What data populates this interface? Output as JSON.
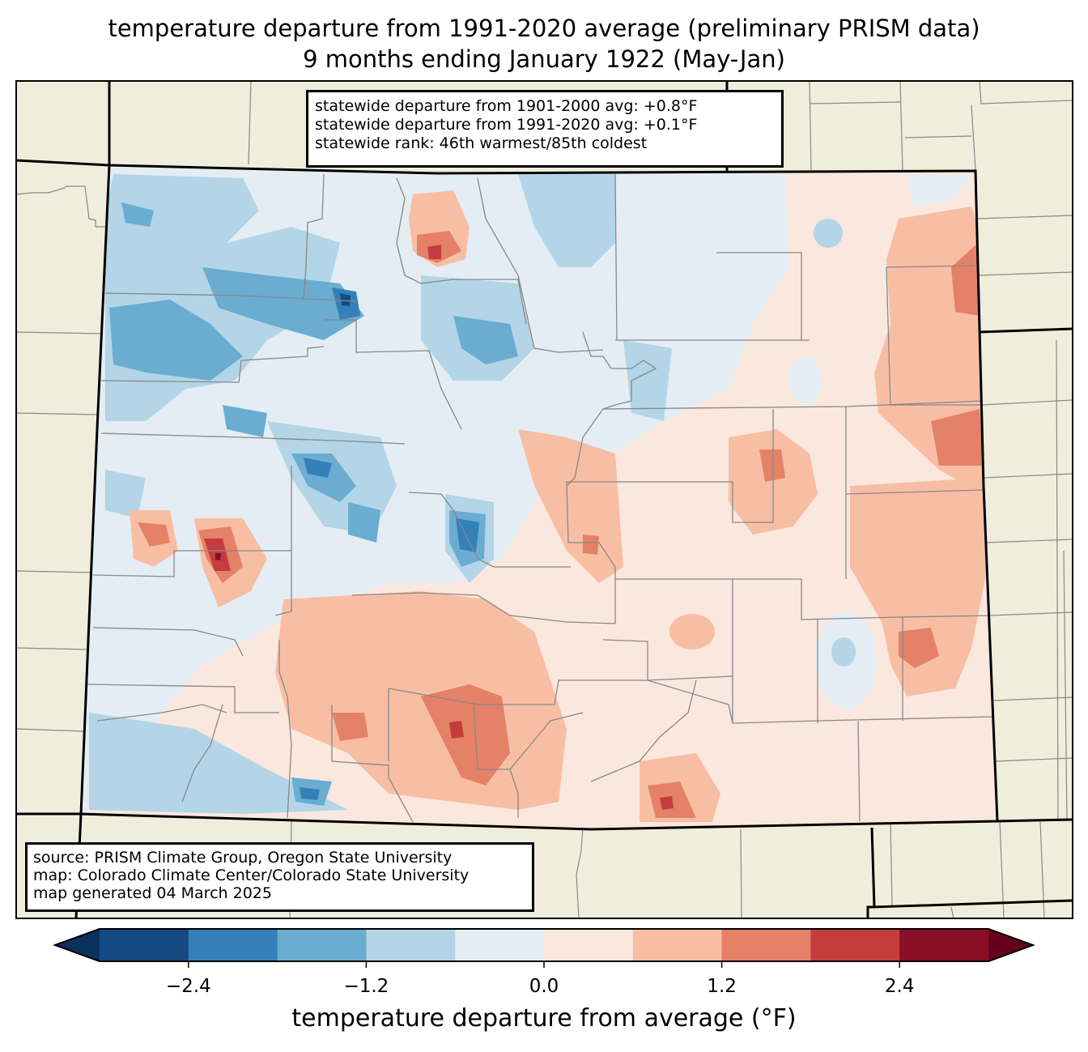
{
  "title": {
    "line1": "temperature departure from 1991-2020 average (preliminary PRISM data)",
    "line2": "9 months ending January 1922 (May-Jan)"
  },
  "stats": {
    "line1": "statewide departure from 1901-2000 avg: +0.8°F",
    "line2": "statewide departure from 1991-2020 avg: +0.1°F",
    "line3": "statewide rank: 46th warmest/85th coldest"
  },
  "credits": {
    "line1": "source: PRISM Climate Group, Oregon State University",
    "line2": "map: Colorado Climate Center/Colorado State University",
    "line3": "map generated 04 March 2025"
  },
  "colorbar": {
    "label": "temperature departure from average (°F)",
    "ticks": [
      "−2.4",
      "−1.2",
      "0.0",
      "1.2",
      "2.4"
    ],
    "tick_values": [
      -2.4,
      -1.2,
      0.0,
      1.2,
      2.4
    ],
    "range": [
      -3.0,
      3.0
    ],
    "bins": [
      -3.0,
      -2.4,
      -1.8,
      -1.2,
      -0.6,
      0.0,
      0.6,
      1.2,
      1.8,
      2.4,
      3.0
    ],
    "colors": [
      "#164a82",
      "#3480b9",
      "#6aadd1",
      "#b3d5e7",
      "#e4edf4",
      "#fae7de",
      "#f8bea4",
      "#e48167",
      "#c43c3c",
      "#8a0e26"
    ],
    "under_color": "#0a3060",
    "over_color": "#67001f"
  },
  "map_colors": {
    "land_outside": "#efeedc",
    "state_border": "#000000",
    "county_border": "#888888"
  }
}
